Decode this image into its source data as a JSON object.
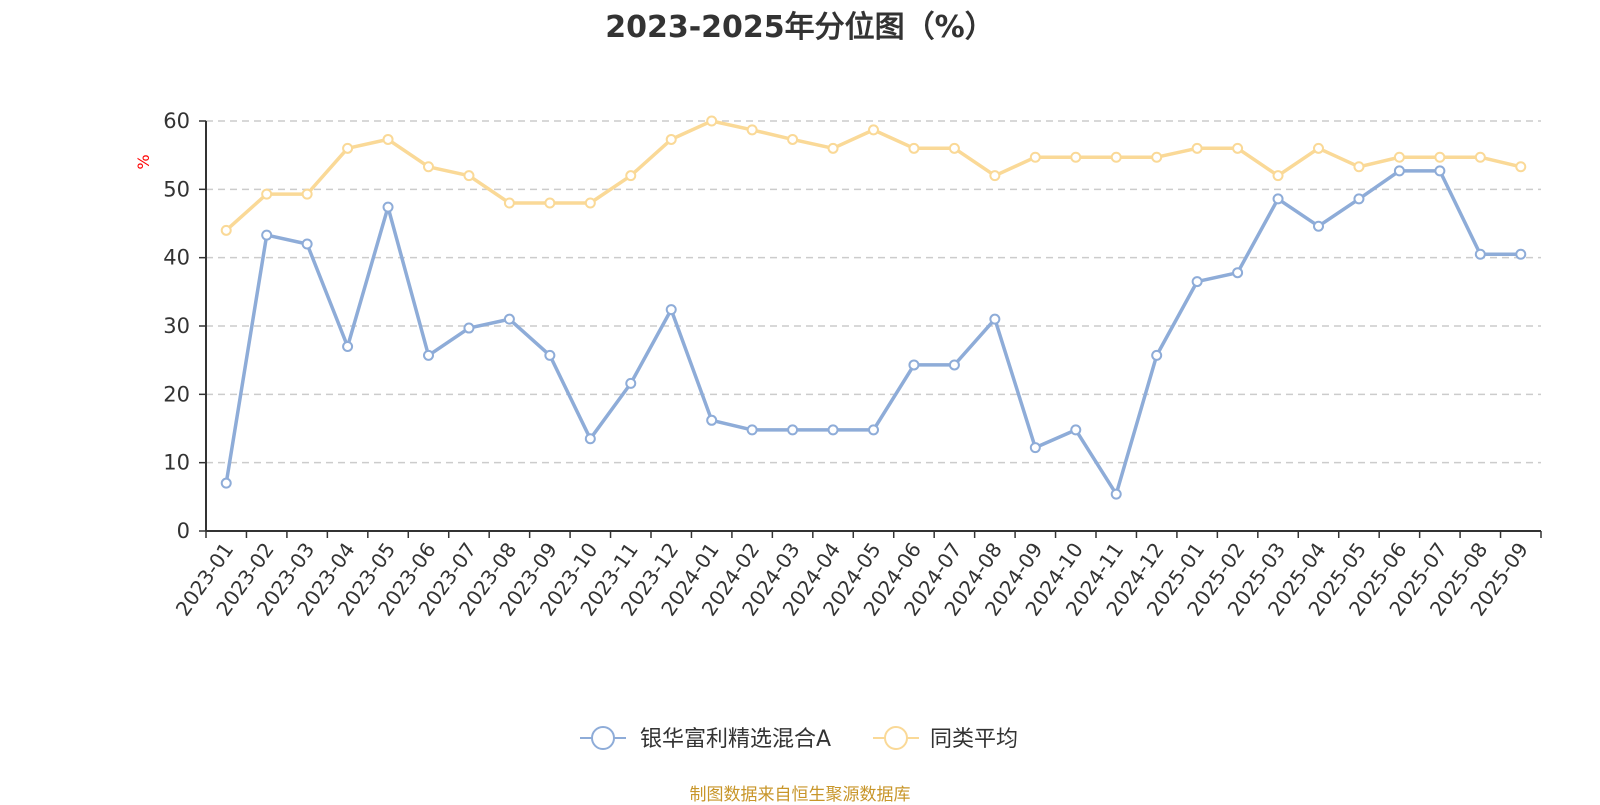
{
  "chart_data": {
    "type": "line",
    "title": "2023-2025年分位图（%）",
    "ylabel": "%",
    "ylim": [
      0,
      60
    ],
    "yticks": [
      0,
      10,
      20,
      30,
      40,
      50,
      60
    ],
    "grid": true,
    "legend_position": "bottom-center",
    "categories": [
      "2023-01",
      "2023-02",
      "2023-03",
      "2023-04",
      "2023-05",
      "2023-06",
      "2023-07",
      "2023-08",
      "2023-09",
      "2023-10",
      "2023-11",
      "2023-12",
      "2024-01",
      "2024-02",
      "2024-03",
      "2024-04",
      "2024-05",
      "2024-06",
      "2024-07",
      "2024-08",
      "2024-09",
      "2024-10",
      "2024-11",
      "2024-12",
      "2025-01",
      "2025-02",
      "2025-03",
      "2025-04",
      "2025-05",
      "2025-06",
      "2025-07",
      "2025-08",
      "2025-09"
    ],
    "series": [
      {
        "name": "银华富利精选混合A",
        "color": "#8eacd8",
        "values": [
          7,
          43.3,
          42,
          27,
          47.4,
          25.7,
          29.7,
          31,
          25.7,
          13.5,
          21.6,
          32.4,
          16.2,
          14.8,
          14.8,
          14.8,
          14.8,
          24.3,
          24.3,
          31,
          12.2,
          14.8,
          5.4,
          25.7,
          36.5,
          37.8,
          48.6,
          44.6,
          48.6,
          52.7,
          52.7,
          40.5,
          40.5
        ]
      },
      {
        "name": "同类平均",
        "color": "#fad997",
        "values": [
          44,
          49.3,
          49.3,
          56,
          57.3,
          53.3,
          52,
          48,
          48,
          48,
          52,
          57.3,
          60,
          58.7,
          57.3,
          56,
          58.7,
          56,
          56,
          52,
          54.7,
          54.7,
          54.7,
          54.7,
          56,
          56,
          52,
          56,
          53.3,
          54.7,
          54.7,
          54.7,
          53.3
        ]
      }
    ]
  },
  "source_note": "制图数据来自恒生聚源数据库"
}
